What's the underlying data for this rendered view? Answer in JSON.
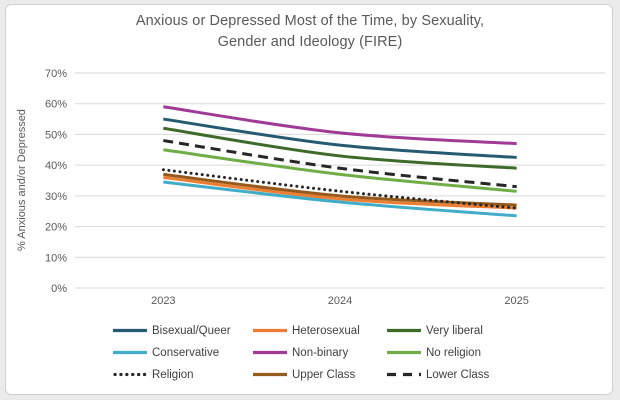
{
  "title": {
    "line1": "Anxious or Depressed Most of the Time, by Sexuality,",
    "line2": "Gender and Ideology (FIRE)"
  },
  "chart_data": {
    "type": "line",
    "title": "Anxious or Depressed Most of the Time, by Sexuality, Gender and Ideology (FIRE)",
    "x": [
      "2023",
      "2024",
      "2025"
    ],
    "xlabel": "",
    "ylabel": "% Anxious and/or Depressed",
    "ylim": [
      0,
      70
    ],
    "ytick_step": 10,
    "ytick_format": "percent",
    "grid": true,
    "smoothed_lines": true,
    "legend_position": "bottom",
    "colors": {
      "gridline": "#d9d9d9",
      "tick_label": "#595959",
      "title_text": "#595959",
      "legend_text": "#3f3f3f"
    },
    "series": [
      {
        "name": "Bisexual/Queer",
        "color": "#265A70",
        "style": "solid",
        "values": [
          55,
          46.5,
          42.5
        ]
      },
      {
        "name": "Heterosexual",
        "color": "#ED7D31",
        "style": "solid",
        "values": [
          36,
          29,
          26
        ]
      },
      {
        "name": "Very liberal",
        "color": "#3E6B2A",
        "style": "solid",
        "values": [
          52,
          43,
          39
        ]
      },
      {
        "name": "Conservative",
        "color": "#41ACC8",
        "style": "solid",
        "values": [
          34.5,
          28,
          23.5
        ]
      },
      {
        "name": "Non-binary",
        "color": "#A03A96",
        "style": "solid",
        "values": [
          59,
          50.5,
          47
        ]
      },
      {
        "name": "No religion",
        "color": "#70AD47",
        "style": "solid",
        "values": [
          45,
          37,
          31.5
        ]
      },
      {
        "name": "Religion",
        "color": "#262626",
        "style": "dotted",
        "values": [
          38.5,
          31.5,
          26
        ]
      },
      {
        "name": "Upper Class",
        "color": "#975A1D",
        "style": "solid",
        "values": [
          37,
          30,
          27
        ]
      },
      {
        "name": "Lower Class",
        "color": "#262626",
        "style": "dashed",
        "values": [
          48,
          39,
          33
        ]
      }
    ]
  }
}
